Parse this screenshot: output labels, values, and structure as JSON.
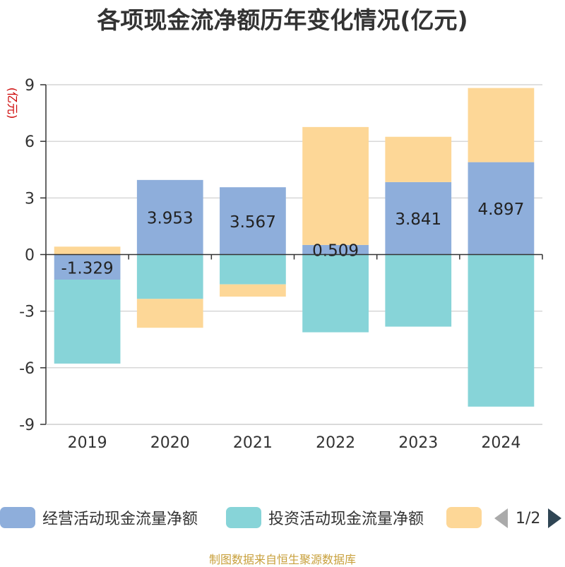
{
  "chart_data": {
    "type": "bar",
    "stacked": true,
    "title": "各项现金流净额历年变化情况(亿元)",
    "ylabel": "(亿元)",
    "categories": [
      "2019",
      "2020",
      "2021",
      "2022",
      "2023",
      "2024"
    ],
    "ylim": [
      -9,
      9
    ],
    "yticks": [
      -9,
      -6,
      -3,
      0,
      3,
      6,
      9
    ],
    "grid": true,
    "series": [
      {
        "name": "经营活动现金流量净额",
        "color": "#8eaedb",
        "values": [
          -1.329,
          3.953,
          3.567,
          0.509,
          3.841,
          4.897
        ],
        "labels": [
          "-1.329",
          "3.953",
          "3.567",
          "0.509",
          "3.841",
          "4.897"
        ]
      },
      {
        "name": "投资活动现金流量净额",
        "color": "#87d4d8",
        "values": [
          -4.45,
          -2.35,
          -1.58,
          -4.12,
          -3.82,
          -8.06
        ]
      },
      {
        "name": "",
        "color": "#fdd797",
        "values": [
          0.42,
          -1.53,
          -0.65,
          6.25,
          2.4,
          3.93
        ]
      }
    ],
    "legend_position": "bottom"
  },
  "pager": {
    "text": "1/2"
  },
  "source": "制图数据来自恒生聚源数据库"
}
